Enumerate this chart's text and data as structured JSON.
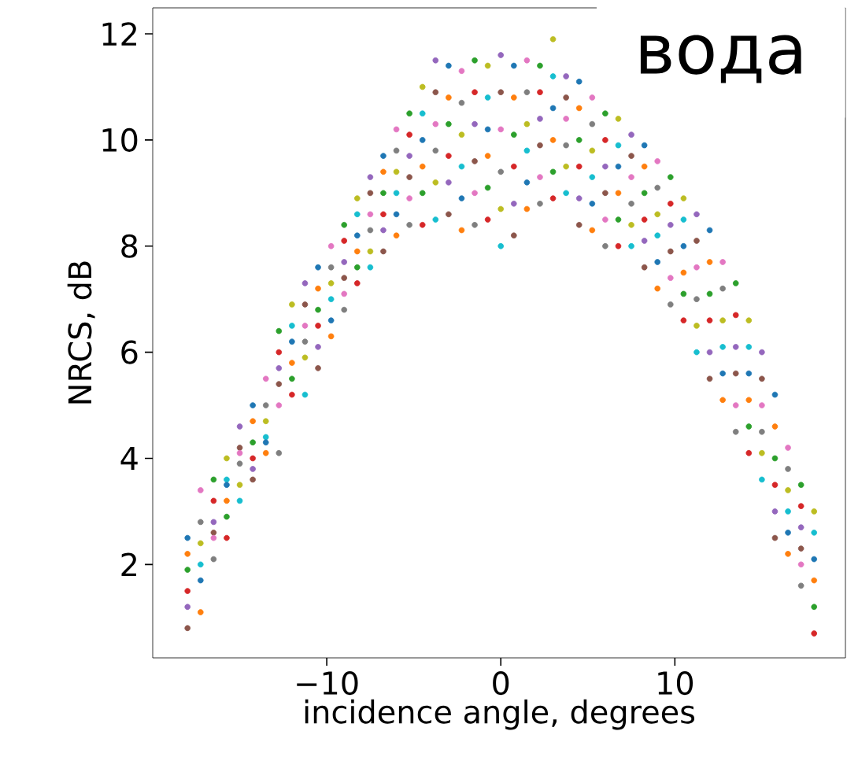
{
  "chart_data": {
    "type": "scatter",
    "xlabel": "incidence angle, degrees",
    "ylabel": "NRCS, dB",
    "annotations": [
      "вода"
    ],
    "xlim": [
      -20.0,
      19.8
    ],
    "ylim": [
      0.24,
      12.49
    ],
    "xticks": [
      {
        "value": -10,
        "label": "−10"
      },
      0,
      10
    ],
    "yticks": [
      2,
      4,
      6,
      8,
      10,
      12
    ],
    "series": [
      {
        "x": [
          -18,
          -18,
          -18,
          -18,
          -18,
          -18,
          -17.25,
          -17.25,
          -17.25,
          -17.25,
          -17.25,
          -17.25,
          -16.5,
          -16.5,
          -16.5,
          -16.5,
          -16.5,
          -16.5,
          -15.75,
          -15.75,
          -15.75,
          -15.75,
          -15.75,
          -15.75,
          -15,
          -15,
          -15,
          -15,
          -15,
          -15,
          -14.25,
          -14.25,
          -14.25,
          -14.25,
          -14.25,
          -14.25,
          -13.5,
          -13.5,
          -13.5,
          -13.5,
          -13.5,
          -13.5,
          -12.75,
          -12.75,
          -12.75,
          -12.75,
          -12.75,
          -12.75,
          -12,
          -12,
          -12,
          -12,
          -12,
          -12,
          -11.25,
          -11.25,
          -11.25,
          -11.25,
          -11.25,
          -11.25,
          -10.5,
          -10.5,
          -10.5,
          -10.5,
          -10.5,
          -10.5,
          -9.75,
          -9.75,
          -9.75,
          -9.75,
          -9.75,
          -9.75,
          -9,
          -9,
          -9,
          -9,
          -9,
          -9,
          -8.25,
          -8.25,
          -8.25,
          -8.25,
          -8.25,
          -8.25,
          -7.5,
          -7.5,
          -7.5,
          -7.5,
          -7.5,
          -7.5,
          -6.75,
          -6.75,
          -6.75,
          -6.75,
          -6.75,
          -6.75,
          -6,
          -6,
          -6,
          -6,
          -6,
          -6,
          -5.25,
          -5.25,
          -5.25,
          -5.25,
          -5.25,
          -5.25,
          -4.5,
          -4.5,
          -4.5,
          -4.5,
          -4.5,
          -4.5,
          -3.75,
          -3.75,
          -3.75,
          -3.75,
          -3.75,
          -3.75,
          -3,
          -3,
          -3,
          -3,
          -3,
          -3,
          -2.25,
          -2.25,
          -2.25,
          -2.25,
          -2.25,
          -2.25,
          -1.5,
          -1.5,
          -1.5,
          -1.5,
          -1.5,
          -1.5,
          -0.75,
          -0.75,
          -0.75,
          -0.75,
          -0.75,
          -0.75,
          0,
          0,
          0,
          0,
          0,
          0,
          0.75,
          0.75,
          0.75,
          0.75,
          0.75,
          0.75,
          1.5,
          1.5,
          1.5,
          1.5,
          1.5,
          1.5,
          2.25,
          2.25,
          2.25,
          2.25,
          2.25,
          2.25,
          3,
          3,
          3,
          3,
          3,
          3,
          3.75,
          3.75,
          3.75,
          3.75,
          3.75,
          3.75,
          4.5,
          4.5,
          4.5,
          4.5,
          4.5,
          4.5,
          5.25,
          5.25,
          5.25,
          5.25,
          5.25,
          5.25,
          6,
          6,
          6,
          6,
          6,
          6,
          6.75,
          6.75,
          6.75,
          6.75,
          6.75,
          6.75,
          7.5,
          7.5,
          7.5,
          7.5,
          7.5,
          7.5,
          8.25,
          8.25,
          8.25,
          8.25,
          8.25,
          8.25,
          9,
          9,
          9,
          9,
          9,
          9,
          9.75,
          9.75,
          9.75,
          9.75,
          9.75,
          9.75,
          10.5,
          10.5,
          10.5,
          10.5,
          10.5,
          10.5,
          11.25,
          11.25,
          11.25,
          11.25,
          11.25,
          11.25,
          12,
          12,
          12,
          12,
          12,
          12,
          12.75,
          12.75,
          12.75,
          12.75,
          12.75,
          12.75,
          13.5,
          13.5,
          13.5,
          13.5,
          13.5,
          13.5,
          14.25,
          14.25,
          14.25,
          14.25,
          14.25,
          14.25,
          15,
          15,
          15,
          15,
          15,
          15,
          15.75,
          15.75,
          15.75,
          15.75,
          15.75,
          15.75,
          16.5,
          16.5,
          16.5,
          16.5,
          16.5,
          16.5,
          17.25,
          17.25,
          17.25,
          17.25,
          17.25,
          17.25,
          18,
          18,
          18,
          18,
          18,
          18
        ],
        "values": [
          2.5,
          2.2,
          1.9,
          1.5,
          1.2,
          0.8,
          3.4,
          2.8,
          2.4,
          2.0,
          1.7,
          1.1,
          3.6,
          3.2,
          2.8,
          2.6,
          2.5,
          2.1,
          4.0,
          3.6,
          3.5,
          3.2,
          2.9,
          2.5,
          4.6,
          4.2,
          4.1,
          3.9,
          3.5,
          3.2,
          5.0,
          4.7,
          4.3,
          4.0,
          3.8,
          3.6,
          5.5,
          5.0,
          4.7,
          4.4,
          4.3,
          4.1,
          6.4,
          6.0,
          5.7,
          5.4,
          5.0,
          4.1,
          6.9,
          6.5,
          6.2,
          5.8,
          5.5,
          5.2,
          7.3,
          6.9,
          6.5,
          6.2,
          5.9,
          5.2,
          7.6,
          7.2,
          6.8,
          6.5,
          6.1,
          5.7,
          8.0,
          7.6,
          7.3,
          7.0,
          6.6,
          6.3,
          8.4,
          8.1,
          7.7,
          7.4,
          7.1,
          6.8,
          8.9,
          8.6,
          8.2,
          7.9,
          7.6,
          7.3,
          9.3,
          9.0,
          8.6,
          8.3,
          7.9,
          7.6,
          9.7,
          9.4,
          9.0,
          8.6,
          8.3,
          7.9,
          10.2,
          9.8,
          9.4,
          9.0,
          8.6,
          8.2,
          10.5,
          10.1,
          9.7,
          9.3,
          8.9,
          8.4,
          11.0,
          10.5,
          10.0,
          9.5,
          9.0,
          8.4,
          11.5,
          10.9,
          10.3,
          9.8,
          9.2,
          8.5,
          11.4,
          10.8,
          10.3,
          9.7,
          9.2,
          8.6,
          11.3,
          10.7,
          10.1,
          9.5,
          8.9,
          8.3,
          11.5,
          10.9,
          10.3,
          9.6,
          9.0,
          8.4,
          11.4,
          10.8,
          10.2,
          9.7,
          9.1,
          8.5,
          11.6,
          10.9,
          10.2,
          9.4,
          8.7,
          8.0,
          11.4,
          10.8,
          10.1,
          9.5,
          8.8,
          8.2,
          11.5,
          10.9,
          10.3,
          9.8,
          9.2,
          8.7,
          11.4,
          10.9,
          10.4,
          9.9,
          9.3,
          8.8,
          11.9,
          11.2,
          10.6,
          10.0,
          9.4,
          8.9,
          11.2,
          10.8,
          10.4,
          9.9,
          9.5,
          9.0,
          11.1,
          10.6,
          10.0,
          9.5,
          8.9,
          8.4,
          10.8,
          10.3,
          9.8,
          9.3,
          8.8,
          8.3,
          10.5,
          10.0,
          9.5,
          9.0,
          8.5,
          8.0,
          10.4,
          9.9,
          9.5,
          9.0,
          8.5,
          8.0,
          10.1,
          9.7,
          9.3,
          8.8,
          8.4,
          8.0,
          9.9,
          9.5,
          9.0,
          8.5,
          8.1,
          7.6,
          9.6,
          9.1,
          8.6,
          8.2,
          7.7,
          7.2,
          9.3,
          8.8,
          8.4,
          7.9,
          7.4,
          6.9,
          8.9,
          8.5,
          8.0,
          7.5,
          7.1,
          6.6,
          8.6,
          8.1,
          7.6,
          7.0,
          6.5,
          6.0,
          8.3,
          7.7,
          7.1,
          6.6,
          6.0,
          5.5,
          7.7,
          7.2,
          6.6,
          6.1,
          5.6,
          5.1,
          7.3,
          6.7,
          6.1,
          5.6,
          5.0,
          4.5,
          6.6,
          6.1,
          5.6,
          5.1,
          4.6,
          4.1,
          6.0,
          5.5,
          5.0,
          4.5,
          4.1,
          3.6,
          5.2,
          4.6,
          4.0,
          3.5,
          3.0,
          2.5,
          4.2,
          3.8,
          3.4,
          3.0,
          2.6,
          2.2,
          3.5,
          3.1,
          2.7,
          2.3,
          2.0,
          1.6,
          3.0,
          2.6,
          2.1,
          1.7,
          1.2,
          0.7
        ],
        "colors": [
          "#1f77b4",
          "#ff7f0e",
          "#2ca02c",
          "#d62728",
          "#9467bd",
          "#8c564b",
          "#e377c2",
          "#7f7f7f",
          "#bcbd22",
          "#17becf",
          "#1f77b4",
          "#ff7f0e",
          "#2ca02c",
          "#d62728",
          "#9467bd",
          "#8c564b",
          "#e377c2",
          "#7f7f7f",
          "#bcbd22",
          "#17becf",
          "#1f77b4",
          "#ff7f0e",
          "#2ca02c",
          "#d62728",
          "#9467bd",
          "#8c564b",
          "#e377c2",
          "#7f7f7f",
          "#bcbd22",
          "#17becf",
          "#1f77b4",
          "#ff7f0e",
          "#2ca02c",
          "#d62728",
          "#9467bd",
          "#8c564b",
          "#e377c2",
          "#7f7f7f",
          "#bcbd22",
          "#17becf",
          "#1f77b4",
          "#ff7f0e",
          "#2ca02c",
          "#d62728",
          "#9467bd",
          "#8c564b",
          "#e377c2",
          "#7f7f7f",
          "#bcbd22",
          "#17becf",
          "#1f77b4",
          "#ff7f0e",
          "#2ca02c",
          "#d62728",
          "#9467bd",
          "#8c564b",
          "#e377c2",
          "#7f7f7f",
          "#bcbd22",
          "#17becf",
          "#1f77b4",
          "#ff7f0e",
          "#2ca02c",
          "#d62728",
          "#9467bd",
          "#8c564b",
          "#e377c2",
          "#7f7f7f",
          "#bcbd22",
          "#17becf",
          "#1f77b4",
          "#ff7f0e",
          "#2ca02c",
          "#d62728",
          "#9467bd",
          "#8c564b",
          "#e377c2",
          "#7f7f7f",
          "#bcbd22",
          "#17becf",
          "#1f77b4",
          "#ff7f0e",
          "#2ca02c",
          "#d62728",
          "#9467bd",
          "#8c564b",
          "#e377c2",
          "#7f7f7f",
          "#bcbd22",
          "#17becf",
          "#1f77b4",
          "#ff7f0e",
          "#2ca02c",
          "#d62728",
          "#9467bd",
          "#8c564b",
          "#e377c2",
          "#7f7f7f",
          "#bcbd22",
          "#17becf",
          "#1f77b4",
          "#ff7f0e",
          "#2ca02c",
          "#d62728",
          "#9467bd",
          "#8c564b",
          "#e377c2",
          "#7f7f7f",
          "#bcbd22",
          "#17becf",
          "#1f77b4",
          "#ff7f0e",
          "#2ca02c",
          "#d62728",
          "#9467bd",
          "#8c564b",
          "#e377c2",
          "#7f7f7f",
          "#bcbd22",
          "#17becf",
          "#1f77b4",
          "#ff7f0e",
          "#2ca02c",
          "#d62728",
          "#9467bd",
          "#8c564b",
          "#e377c2",
          "#7f7f7f",
          "#bcbd22",
          "#17becf",
          "#1f77b4",
          "#ff7f0e",
          "#2ca02c",
          "#d62728",
          "#9467bd",
          "#8c564b",
          "#e377c2",
          "#7f7f7f",
          "#bcbd22",
          "#17becf",
          "#1f77b4",
          "#ff7f0e",
          "#2ca02c",
          "#d62728",
          "#9467bd",
          "#8c564b",
          "#e377c2",
          "#7f7f7f",
          "#bcbd22",
          "#17becf",
          "#1f77b4",
          "#ff7f0e",
          "#2ca02c",
          "#d62728",
          "#9467bd",
          "#8c564b",
          "#e377c2",
          "#7f7f7f",
          "#bcbd22",
          "#17becf",
          "#1f77b4",
          "#ff7f0e",
          "#2ca02c",
          "#d62728",
          "#9467bd",
          "#8c564b",
          "#e377c2",
          "#7f7f7f",
          "#bcbd22",
          "#17becf",
          "#1f77b4",
          "#ff7f0e",
          "#2ca02c",
          "#d62728",
          "#9467bd",
          "#8c564b",
          "#e377c2",
          "#7f7f7f",
          "#bcbd22",
          "#17becf",
          "#1f77b4",
          "#ff7f0e",
          "#2ca02c",
          "#d62728",
          "#9467bd",
          "#8c564b",
          "#e377c2",
          "#7f7f7f",
          "#bcbd22",
          "#17becf",
          "#1f77b4",
          "#ff7f0e",
          "#2ca02c",
          "#d62728",
          "#9467bd",
          "#8c564b",
          "#e377c2",
          "#7f7f7f",
          "#bcbd22",
          "#17becf",
          "#1f77b4",
          "#ff7f0e",
          "#2ca02c",
          "#d62728",
          "#9467bd",
          "#8c564b",
          "#e377c2",
          "#7f7f7f",
          "#bcbd22",
          "#17becf",
          "#1f77b4",
          "#ff7f0e",
          "#2ca02c",
          "#d62728",
          "#9467bd",
          "#8c564b",
          "#e377c2",
          "#7f7f7f",
          "#bcbd22",
          "#17becf",
          "#1f77b4",
          "#ff7f0e",
          "#2ca02c",
          "#d62728",
          "#9467bd",
          "#8c564b",
          "#e377c2",
          "#7f7f7f",
          "#bcbd22",
          "#17becf",
          "#1f77b4",
          "#ff7f0e",
          "#2ca02c",
          "#d62728",
          "#9467bd",
          "#8c564b",
          "#e377c2",
          "#7f7f7f",
          "#bcbd22",
          "#17becf",
          "#1f77b4",
          "#ff7f0e",
          "#2ca02c",
          "#d62728",
          "#9467bd",
          "#8c564b",
          "#e377c2",
          "#7f7f7f",
          "#bcbd22",
          "#17becf",
          "#1f77b4",
          "#ff7f0e",
          "#2ca02c",
          "#d62728",
          "#9467bd",
          "#8c564b",
          "#e377c2",
          "#7f7f7f",
          "#bcbd22",
          "#17becf",
          "#1f77b4",
          "#ff7f0e",
          "#2ca02c",
          "#d62728",
          "#9467bd",
          "#8c564b",
          "#e377c2",
          "#7f7f7f",
          "#bcbd22",
          "#17becf",
          "#1f77b4",
          "#ff7f0e",
          "#2ca02c",
          "#d62728",
          "#9467bd",
          "#8c564b",
          "#e377c2",
          "#7f7f7f",
          "#bcbd22",
          "#17becf",
          "#1f77b4",
          "#ff7f0e",
          "#2ca02c",
          "#d62728",
          "#9467bd",
          "#8c564b",
          "#e377c2",
          "#7f7f7f",
          "#bcbd22",
          "#17becf",
          "#1f77b4",
          "#ff7f0e",
          "#2ca02c",
          "#d62728"
        ]
      }
    ]
  }
}
